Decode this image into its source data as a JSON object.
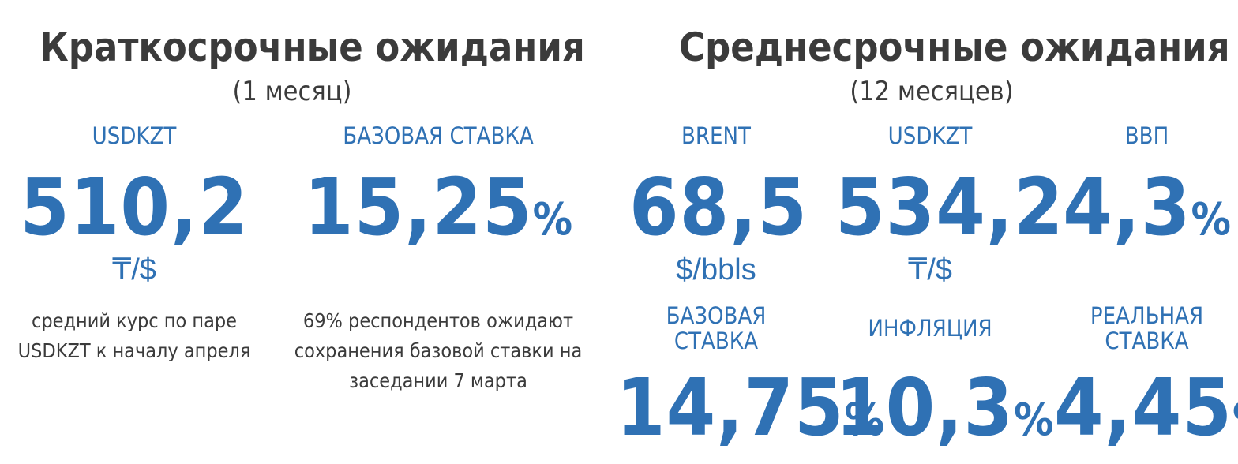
{
  "short_term": {
    "title": "Краткосрочные ожидания",
    "subtitle": "(1 месяц)",
    "usdkzt": {
      "label": "USDKZT",
      "value": "510,2",
      "unit": "₸/$",
      "note": "средний курс по паре USDKZT к началу апреля"
    },
    "base_rate": {
      "label": "БАЗОВАЯ СТАВКА",
      "value": "15,25",
      "suffix": "%",
      "note": "69% респондентов ожидают сохранения базовой ставки на заседании 7 марта"
    }
  },
  "medium_term": {
    "title": "Среднесрочные ожидания",
    "subtitle": "(12 месяцев)",
    "brent": {
      "label": "BRENT",
      "value": "68,5",
      "unit": "$/bbls"
    },
    "usdkzt": {
      "label": "USDKZT",
      "value": "534,2",
      "unit": "₸/$"
    },
    "gdp": {
      "label": "ВВП",
      "value": "4,3",
      "suffix": "%"
    },
    "base_rate": {
      "label": "БАЗОВАЯ СТАВКА",
      "value": "14,75",
      "suffix": "%"
    },
    "inflation": {
      "label": "ИНФЛЯЦИЯ",
      "value": "10,3",
      "suffix": "%"
    },
    "real_rate": {
      "label": "РЕАЛЬНАЯ СТАВКА",
      "value": "4,45",
      "suffix": "%"
    }
  },
  "colors": {
    "accent": "#2f71b4",
    "text": "#3b3b3b",
    "background": "#ffffff"
  }
}
